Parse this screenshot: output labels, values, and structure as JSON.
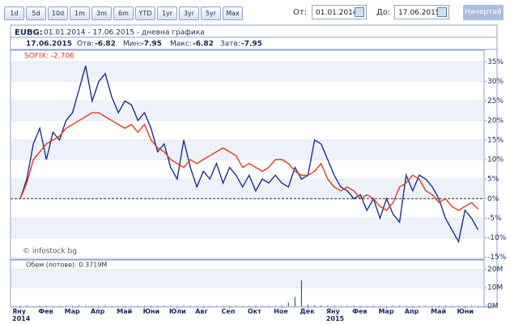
{
  "toolbar": {
    "buttons": [
      "1d",
      "5d",
      "10d",
      "1m",
      "3m",
      "6m",
      "YTD",
      "1yr",
      "3yr",
      "5yr",
      "Max"
    ],
    "from_label": "От:",
    "from": "01.01.2014",
    "to_label": "До:",
    "to": "17.06.2015",
    "submit": "Начертай"
  },
  "header": {
    "symbol": "EUBG:",
    "title": "01.01.2014 - 17.06.2015 - дневна графика"
  },
  "info": {
    "date": "17.06.2015",
    "open_label": "Отв:",
    "open": -6.82,
    "low_label": "Мин:",
    "low": -7.95,
    "high_label": "Макс:",
    "high": -6.82,
    "close_label": "Затв:",
    "close": -7.95
  },
  "watermark": "© infostock.bg",
  "chart_data": [
    {
      "type": "line",
      "categories": [
        "Яну 2014",
        null,
        null,
        null,
        "Фев",
        null,
        null,
        null,
        "Мар",
        null,
        null,
        null,
        "Апр",
        null,
        null,
        null,
        "Май",
        null,
        null,
        null,
        "Юни",
        null,
        null,
        null,
        "Юли",
        null,
        null,
        null,
        "Авг",
        null,
        null,
        null,
        "Сеп",
        null,
        null,
        null,
        "Окт",
        null,
        null,
        null,
        "Ное",
        null,
        null,
        null,
        "Дек",
        null,
        null,
        null,
        "Яну 2015",
        null,
        null,
        null,
        "Фев",
        null,
        null,
        null,
        "Мар",
        null,
        null,
        null,
        "Апр",
        null,
        null,
        null,
        "Май",
        null,
        null,
        null,
        "Юни",
        null,
        null
      ],
      "series": [
        {
          "color": "#1f2f8a",
          "values": [
            0,
            5,
            14,
            18,
            10,
            17,
            15,
            20,
            22,
            28,
            34,
            25,
            30,
            32,
            26,
            22,
            25,
            24,
            20,
            22,
            18,
            12,
            14,
            8,
            5,
            15,
            8,
            3,
            7,
            5,
            9,
            4,
            8,
            6,
            3,
            6,
            2,
            5,
            4,
            6,
            4,
            3,
            8,
            5,
            6,
            15,
            14,
            10,
            6,
            3,
            2,
            0,
            1,
            -3,
            0,
            -5,
            0,
            -4,
            -6,
            6,
            2,
            6,
            5,
            3,
            0,
            -5,
            -8,
            -11,
            -3,
            -5,
            -8
          ]
        },
        {
          "name": "SOFIX: -2.706",
          "color": "#e03a1e",
          "values": [
            0,
            4,
            10,
            12,
            14,
            15,
            16,
            18,
            19,
            20,
            21,
            22,
            22,
            21,
            20,
            19,
            18,
            19,
            17,
            19,
            15,
            13,
            12,
            10,
            9,
            8,
            10,
            9,
            10,
            11,
            12,
            13,
            12,
            11,
            8,
            9,
            8,
            7,
            8,
            10,
            10,
            9,
            7,
            6,
            6,
            7,
            9,
            5,
            3,
            2,
            3,
            2,
            0,
            1,
            0,
            -2,
            -3,
            -1,
            3,
            4,
            6,
            5,
            2,
            1,
            -1,
            0,
            -2,
            -3,
            -2,
            -1,
            -2.7
          ]
        }
      ],
      "ylim": [
        -15.5,
        38
      ],
      "yticks": [
        {
          "value": -15,
          "label": "-15%"
        },
        {
          "value": -10,
          "label": "-10%"
        },
        {
          "value": -5,
          "label": "-5%"
        },
        {
          "value": 0,
          "label": "0%"
        },
        {
          "value": 5,
          "label": "5%"
        },
        {
          "value": 10,
          "label": "10%"
        },
        {
          "value": 15,
          "label": "15%"
        },
        {
          "value": 20,
          "label": "20%"
        },
        {
          "value": 25,
          "label": "25%"
        },
        {
          "value": 30,
          "label": "30%"
        },
        {
          "value": 35,
          "label": "35%"
        }
      ],
      "zero_line": true
    },
    {
      "type": "bar",
      "title": "Обем (лотове): 0.3719M",
      "color": "#2f6b2f",
      "values": [
        200000,
        300000,
        150000,
        250000,
        200000,
        180000,
        220000,
        300000,
        250000,
        400000,
        350000,
        200000,
        250000,
        300000,
        200000,
        150000,
        200000,
        180000,
        150000,
        220000,
        200000,
        250000,
        300000,
        200000,
        180000,
        250000,
        200000,
        150000,
        200000,
        180000,
        150000,
        200000,
        220000,
        180000,
        250000,
        200000,
        150000,
        200000,
        180000,
        250000,
        300000,
        2000000,
        5000000,
        14000000,
        800000,
        600000,
        400000,
        300000,
        250000,
        200000,
        300000,
        250000,
        200000,
        180000,
        250000,
        200000,
        150000,
        200000,
        300000,
        250000,
        200000,
        180000,
        150000,
        200000,
        250000,
        300000,
        200000,
        250000,
        180000,
        200000,
        150000
      ],
      "ylim": [
        0,
        25000000
      ],
      "yticks": [
        {
          "value": 0,
          "label": "0M"
        },
        {
          "value": 10000000,
          "label": "10M"
        },
        {
          "value": 20000000,
          "label": "20M"
        }
      ]
    }
  ]
}
